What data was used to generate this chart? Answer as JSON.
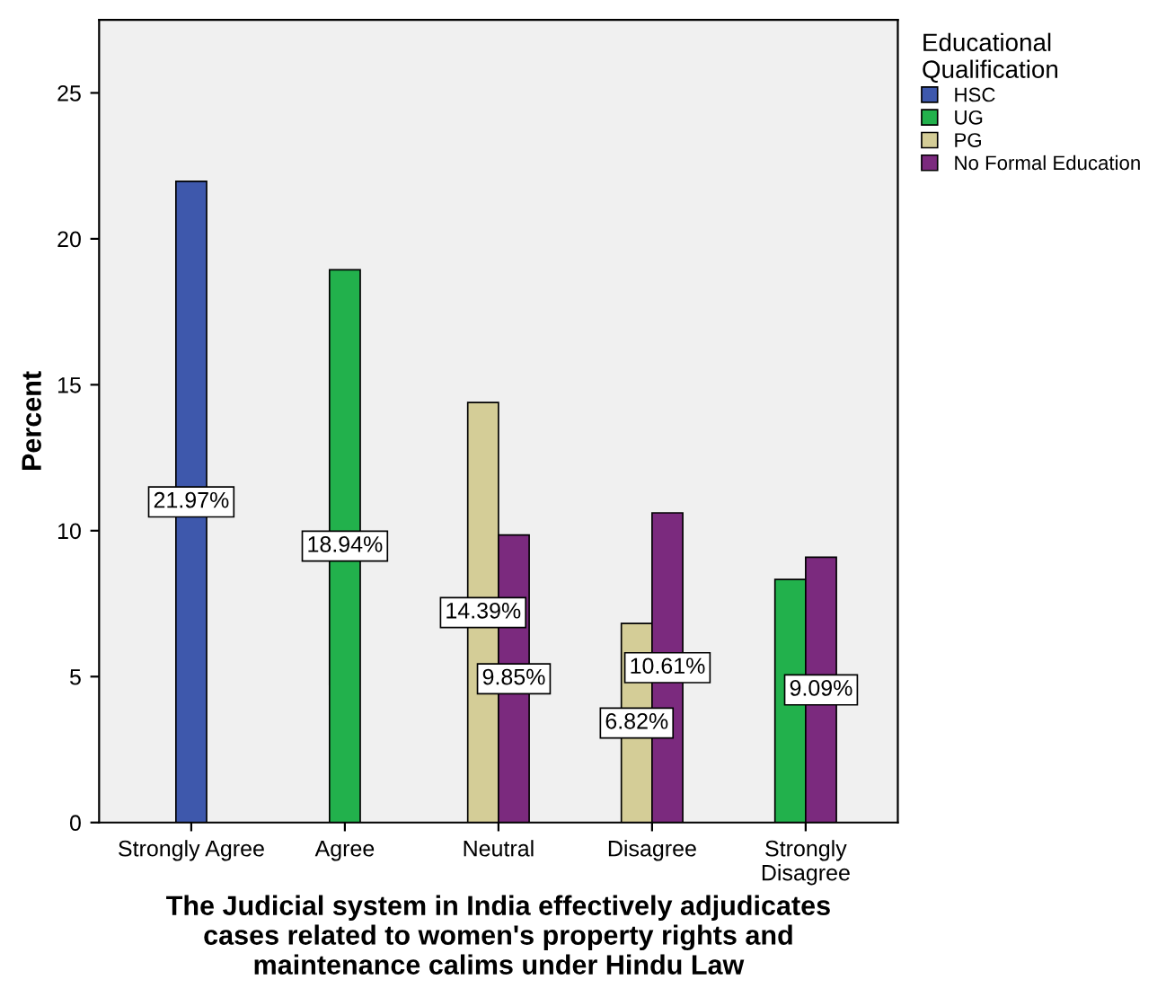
{
  "chart_data": {
    "type": "bar",
    "xlabel": "The Judicial system in India effectively adjudicates\ncases related to women's property rights and\nmaintenance calims under Hindu Law",
    "ylabel": "Percent",
    "legend_title": "Educational\nQualification",
    "legend": "top right",
    "grid": false,
    "categories": [
      "Strongly Agree",
      "Agree",
      "Neutral",
      "Disagree",
      "Strongly\nDisagree"
    ],
    "ylim": [
      0,
      27.5
    ],
    "yticks": [
      0,
      5,
      10,
      15,
      20,
      25
    ],
    "series": [
      {
        "name": "HSC",
        "color": "#3e58ac",
        "values": [
          21.97,
          null,
          null,
          null,
          null
        ],
        "value_labels": [
          "21.97%",
          null,
          null,
          null,
          null
        ]
      },
      {
        "name": "UG",
        "color": "#22b14c",
        "values": [
          null,
          18.94,
          null,
          null,
          8.33
        ],
        "value_labels": [
          null,
          "18.94%",
          null,
          null,
          null
        ]
      },
      {
        "name": "PG",
        "color": "#d4cd97",
        "values": [
          null,
          null,
          14.39,
          6.82,
          null
        ],
        "value_labels": [
          null,
          null,
          "14.39%",
          "6.82%",
          null
        ]
      },
      {
        "name": "No Formal Education",
        "color": "#7b2a7e",
        "values": [
          null,
          null,
          9.85,
          10.61,
          9.09
        ],
        "value_labels": [
          null,
          null,
          "9.85%",
          "10.61%",
          "9.09%"
        ]
      }
    ]
  }
}
